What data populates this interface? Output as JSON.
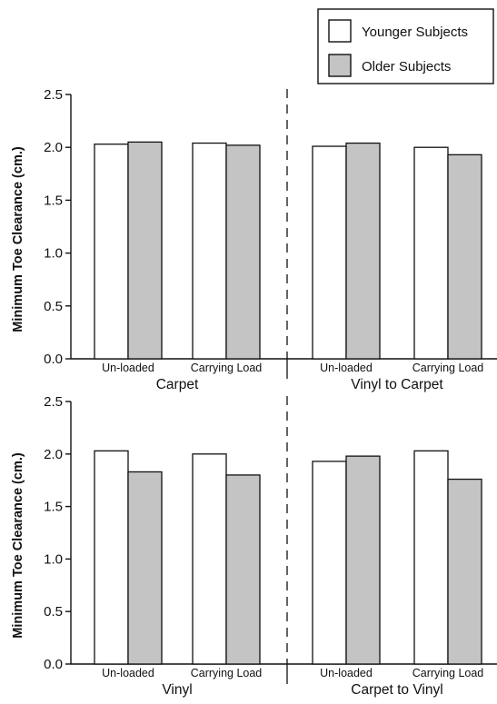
{
  "legend": {
    "younger": "Younger Subjects",
    "older": "Older Subjects"
  },
  "colors": {
    "younger": "#ffffff",
    "older": "#c4c4c4",
    "stroke": "#111111"
  },
  "chart_data": [
    {
      "type": "bar",
      "ylabel": "Minimum Toe Clearance (cm.)",
      "ylim": [
        0,
        2.5
      ],
      "yticks": [
        "0.0",
        "0.5",
        "1.0",
        "1.5",
        "2.0",
        "2.5"
      ],
      "groups": [
        "Carpet",
        "Vinyl to Carpet"
      ],
      "categories": [
        "Un-loaded",
        "Carrying Load",
        "Un-loaded",
        "Carrying Load"
      ],
      "series": [
        {
          "name": "Younger Subjects",
          "values": [
            2.03,
            2.04,
            2.01,
            2.0
          ]
        },
        {
          "name": "Older Subjects",
          "values": [
            2.05,
            2.02,
            2.04,
            1.93
          ]
        }
      ],
      "grid": false,
      "divider": "dashed"
    },
    {
      "type": "bar",
      "ylabel": "Minimum Toe Clearance (cm.)",
      "ylim": [
        0,
        2.5
      ],
      "yticks": [
        "0.0",
        "0.5",
        "1.0",
        "1.5",
        "2.0",
        "2.5"
      ],
      "groups": [
        "Vinyl",
        "Carpet to Vinyl"
      ],
      "categories": [
        "Un-loaded",
        "Carrying Load",
        "Un-loaded",
        "Carrying Load"
      ],
      "series": [
        {
          "name": "Younger Subjects",
          "values": [
            2.03,
            2.0,
            1.93,
            2.03
          ]
        },
        {
          "name": "Older Subjects",
          "values": [
            1.83,
            1.8,
            1.98,
            1.76
          ]
        }
      ],
      "grid": false,
      "divider": "dashed"
    }
  ]
}
